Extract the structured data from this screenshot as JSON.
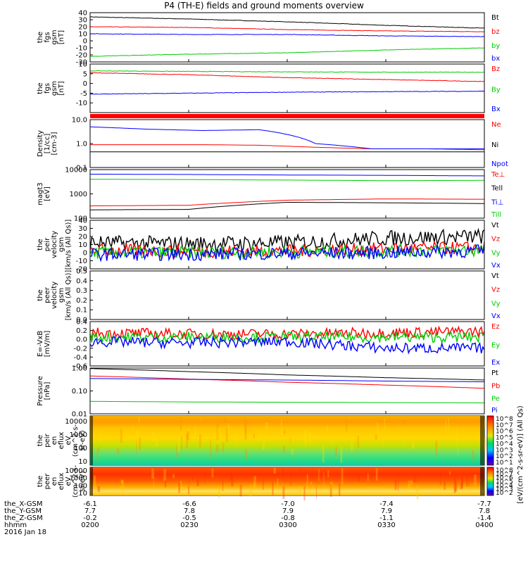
{
  "title": "P4 (TH-E) fields and ground moments overview",
  "footer": {
    "row_labels": [
      "the_X-GSM",
      "the_Y-GSM",
      "the_Z-GSM",
      "hhmm",
      "2016 Jan 18"
    ],
    "columns": [
      {
        "x": "-6.1",
        "y": "7.7",
        "z": "-0.2",
        "t": "0200"
      },
      {
        "x": "-6.6",
        "y": "7.8",
        "z": "-0.5",
        "t": "0230"
      },
      {
        "x": "-7.0",
        "y": "7.9",
        "z": "-0.8",
        "t": "0300"
      },
      {
        "x": "-7.4",
        "y": "7.9",
        "z": "-1.1",
        "t": "0330"
      },
      {
        "x": "-7.7",
        "y": "7.8",
        "z": "-1.4",
        "t": "0400"
      }
    ]
  },
  "colorbar": {
    "label": "[eV/(cm^2-s-sr-eV)] (All Qs)",
    "ticks_top": [
      "10^8",
      "10^7",
      "10^6",
      "10^5",
      "10^4",
      "10^3",
      "10^2",
      "10^1"
    ],
    "ticks_bottom": [
      "10^8",
      "10^7",
      "10^6",
      "10^5",
      "10^4",
      "10^3",
      "10^2"
    ]
  },
  "chart_data": [
    {
      "type": "line",
      "ylabel": "the fgs gsm [nT]",
      "ylim": [
        -30,
        40
      ],
      "yticks": [
        "40",
        "30",
        "20",
        "10",
        "0",
        "-10",
        "-20",
        "-30"
      ],
      "x": [
        "0200",
        "0230",
        "0300",
        "0330",
        "0400"
      ],
      "series": [
        {
          "name": "Bt",
          "color": "#000000",
          "values": [
            34,
            31,
            27,
            22,
            18
          ]
        },
        {
          "name": "bz",
          "color": "#ff0000",
          "values": [
            20,
            19,
            16,
            14,
            13
          ]
        },
        {
          "name": "by",
          "color": "#00cc00",
          "values": [
            -22,
            -19,
            -17,
            -13,
            -10
          ]
        },
        {
          "name": "bx",
          "color": "#0000ff",
          "values": [
            10,
            9,
            9,
            7,
            6
          ]
        }
      ]
    },
    {
      "type": "line",
      "ylabel": "the fgs gsm [nT]",
      "ylim": [
        -15,
        10
      ],
      "yticks": [
        "10",
        "5",
        "0",
        "-5",
        "-10"
      ],
      "x": [
        "0200",
        "0230",
        "0300",
        "0330",
        "0400"
      ],
      "series": [
        {
          "name": "Bz",
          "color": "#ff0000",
          "values": [
            5.5,
            4.5,
            3.0,
            2.0,
            1.0
          ]
        },
        {
          "name": "By",
          "color": "#00cc00",
          "values": [
            6.5,
            6.2,
            6.0,
            5.8,
            5.8
          ]
        },
        {
          "name": "Bx",
          "color": "#0000ff",
          "values": [
            -5.5,
            -5.0,
            -4.5,
            -4.2,
            -4.0
          ]
        }
      ]
    },
    {
      "type": "line",
      "ylabel": "Density [1/cc] [cm-3]",
      "yscale": "log",
      "ylim": [
        0.1,
        10
      ],
      "yticks": [
        "10.0",
        "1.0",
        "0.1"
      ],
      "x": [
        "0200",
        "0215",
        "0230",
        "0245",
        "0252",
        "0300",
        "0330",
        "0400"
      ],
      "series": [
        {
          "name": "Ne",
          "color": "#ff0000",
          "values": [
            0.9,
            0.9,
            0.9,
            0.85,
            0.7,
            0.6,
            0.6,
            0.55
          ]
        },
        {
          "name": "Ni",
          "color": "#000000",
          "values": [
            0.45,
            0.45,
            0.45,
            0.45,
            0.45,
            0.45,
            0.45,
            0.45
          ]
        },
        {
          "name": "Npot",
          "color": "#0000ff",
          "values": [
            5.0,
            4.0,
            3.5,
            3.8,
            1.0,
            0.6,
            0.6,
            0.6
          ]
        }
      ]
    },
    {
      "type": "line",
      "ylabel": "magt3 [eV]",
      "yscale": "log",
      "ylim": [
        100,
        10000
      ],
      "yticks": [
        "10000",
        "1000",
        "100"
      ],
      "x": [
        "0200",
        "0230",
        "0300",
        "0330",
        "0400"
      ],
      "series": [
        {
          "name": "Te⊥",
          "color": "#ff0000",
          "values": [
            320,
            340,
            550,
            620,
            600
          ]
        },
        {
          "name": "Tell",
          "color": "#000000",
          "values": [
            220,
            230,
            450,
            430,
            400
          ]
        },
        {
          "name": "Ti⊥",
          "color": "#0000ff",
          "values": [
            6500,
            6300,
            6000,
            5800,
            5500
          ]
        },
        {
          "name": "Till",
          "color": "#00cc00",
          "values": [
            4000,
            3900,
            3700,
            3500,
            3600
          ]
        }
      ]
    },
    {
      "type": "line",
      "ylabel": "the peir velocity gsm [km/s (All Qs)]",
      "ylim": [
        -20,
        40
      ],
      "yticks": [
        "40",
        "30",
        "20",
        "10",
        "0",
        "-10",
        "-20"
      ],
      "x": [
        "0200",
        "0230",
        "0300",
        "0330",
        "0400"
      ],
      "series": [
        {
          "name": "Vt",
          "color": "#000000",
          "values": [
            12,
            11,
            12,
            18,
            20
          ]
        },
        {
          "name": "Vz",
          "color": "#ff0000",
          "values": [
            3,
            2,
            2,
            5,
            6
          ]
        },
        {
          "name": "Vy",
          "color": "#00cc00",
          "values": [
            0,
            0,
            1,
            2,
            3
          ]
        },
        {
          "name": "Vx",
          "color": "#0000ff",
          "values": [
            -2,
            -2,
            -1,
            0,
            2
          ]
        }
      ]
    },
    {
      "type": "line",
      "ylabel": "the peer velocity gsm [km/s (All Qs)]",
      "ylim": [
        0,
        0.5
      ],
      "yticks": [
        "0.5",
        "0.4",
        "0.3",
        "0.2",
        "0.1",
        "0.0"
      ],
      "series": [
        {
          "name": "Vt",
          "color": "#000000",
          "values": []
        },
        {
          "name": "Vz",
          "color": "#ff0000",
          "values": []
        },
        {
          "name": "Vy",
          "color": "#00cc00",
          "values": []
        },
        {
          "name": "Vx",
          "color": "#0000ff",
          "values": []
        }
      ]
    },
    {
      "type": "line",
      "ylabel": "E=-VxB [mV/m]",
      "ylim": [
        -0.6,
        0.4
      ],
      "yticks": [
        "0.4",
        "0.2",
        "0.0",
        "-0.2",
        "-0.4",
        "-0.6"
      ],
      "x": [
        "0200",
        "0230",
        "0300",
        "0330",
        "0400"
      ],
      "series": [
        {
          "name": "Ez",
          "color": "#ff0000",
          "values": [
            0.15,
            0.12,
            0.12,
            0.15,
            0.18
          ]
        },
        {
          "name": "Ey",
          "color": "#00cc00",
          "values": [
            0.05,
            0.05,
            0.05,
            0.05,
            0.05
          ]
        },
        {
          "name": "Ex",
          "color": "#0000ff",
          "values": [
            -0.05,
            -0.08,
            -0.05,
            -0.2,
            -0.2
          ]
        }
      ]
    },
    {
      "type": "line",
      "ylabel": "Pressure [nPa]",
      "yscale": "log",
      "ylim": [
        0.01,
        1.0
      ],
      "yticks": [
        "1.00",
        "0.10",
        "0.01"
      ],
      "x": [
        "0200",
        "0230",
        "0300",
        "0330",
        "0400"
      ],
      "series": [
        {
          "name": "Pt",
          "color": "#000000",
          "values": [
            0.95,
            0.7,
            0.5,
            0.38,
            0.3
          ]
        },
        {
          "name": "Pb",
          "color": "#ff0000",
          "values": [
            0.45,
            0.33,
            0.24,
            0.18,
            0.13
          ]
        },
        {
          "name": "Pe",
          "color": "#00cc00",
          "values": [
            0.035,
            0.033,
            0.032,
            0.031,
            0.03
          ]
        },
        {
          "name": "Pi",
          "color": "#0000ff",
          "values": [
            0.35,
            0.32,
            0.3,
            0.27,
            0.25
          ]
        }
      ]
    },
    {
      "type": "heatmap",
      "ylabel": "the peir en eflux eV (cm^2-s-sr-eV)",
      "yscale": "log",
      "ylim": [
        5,
        25000
      ],
      "yticks": [
        "10000",
        "1000",
        "100",
        "10"
      ],
      "energy_bands_eV": [
        10,
        30,
        100,
        300,
        1000,
        3000,
        10000
      ],
      "log10_eflux": [
        3.2,
        3.8,
        4.2,
        4.6,
        4.9,
        5.1,
        4.8
      ]
    },
    {
      "type": "heatmap",
      "ylabel": "the peer en eflux eV (cm^2-s-sr-eV)",
      "yscale": "log",
      "ylim": [
        5,
        25000
      ],
      "yticks": [
        "10000",
        "1000",
        "100",
        "10"
      ],
      "energy_bands_eV": [
        10,
        30,
        100,
        300,
        1000,
        3000,
        10000
      ],
      "log10_eflux": [
        6.5,
        6.8,
        7.0,
        6.6,
        6.2,
        5.9,
        5.6
      ]
    }
  ]
}
